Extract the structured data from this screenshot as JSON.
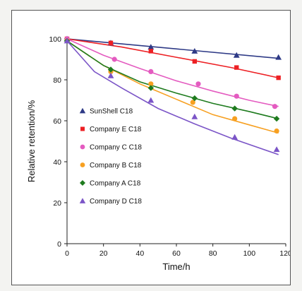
{
  "chart_data": {
    "type": "scatter",
    "xlabel": "Time/h",
    "ylabel": "Relative retention/%",
    "xlim": [
      0,
      120
    ],
    "ylim": [
      0,
      100
    ],
    "xticks": [
      0,
      20,
      40,
      60,
      80,
      100,
      120
    ],
    "yticks": [
      0,
      20,
      40,
      60,
      80,
      100
    ],
    "grid": false,
    "legend_position": "left",
    "series": [
      {
        "name": "SunShell C18",
        "marker": "triangle",
        "color": "#2e3a86",
        "x": [
          0,
          24,
          46,
          70,
          93,
          116
        ],
        "y": [
          100,
          98,
          96,
          94,
          92,
          91
        ],
        "fit": [
          [
            0,
            100
          ],
          [
            116,
            90.5
          ]
        ]
      },
      {
        "name": "Company E C18",
        "marker": "square",
        "color": "#ed2024",
        "x": [
          0,
          24,
          46,
          70,
          93,
          116
        ],
        "y": [
          100,
          98,
          94,
          89,
          86,
          81
        ],
        "fit": [
          [
            0,
            100
          ],
          [
            30,
            96
          ],
          [
            60,
            91
          ],
          [
            90,
            86
          ],
          [
            116,
            81
          ]
        ]
      },
      {
        "name": "Company C C18",
        "marker": "circle",
        "color": "#e45bc0",
        "x": [
          0,
          26,
          46,
          72,
          93,
          114
        ],
        "y": [
          100,
          90,
          84,
          78,
          72,
          67
        ],
        "fit": [
          [
            0,
            100
          ],
          [
            20,
            92
          ],
          [
            40,
            85.5
          ],
          [
            60,
            79.5
          ],
          [
            80,
            74.5
          ],
          [
            100,
            70
          ],
          [
            116,
            67
          ]
        ]
      },
      {
        "name": "Company B C18",
        "marker": "circle",
        "color": "#f7a021",
        "x": [
          0,
          24,
          46,
          69,
          92,
          115
        ],
        "y": [
          99,
          84,
          78,
          69,
          61,
          55
        ],
        "fit": [
          [
            0,
            99
          ],
          [
            20,
            87
          ],
          [
            40,
            78
          ],
          [
            60,
            70.5
          ],
          [
            80,
            63
          ],
          [
            100,
            58
          ],
          [
            116,
            54
          ]
        ]
      },
      {
        "name": "Company A C18",
        "marker": "diamond",
        "color": "#1e7b1e",
        "x": [
          0,
          24,
          46,
          70,
          92,
          115
        ],
        "y": [
          99,
          85,
          76,
          71,
          66,
          61
        ],
        "fit": [
          [
            0,
            99
          ],
          [
            20,
            87
          ],
          [
            40,
            79
          ],
          [
            60,
            73.5
          ],
          [
            80,
            68.5
          ],
          [
            100,
            64.5
          ],
          [
            116,
            61
          ]
        ]
      },
      {
        "name": "Company D C18",
        "marker": "triangle",
        "color": "#7b55c7",
        "x": [
          0,
          24,
          46,
          70,
          92,
          115
        ],
        "y": [
          99,
          82,
          70,
          62,
          52,
          46
        ],
        "fit": [
          [
            0,
            99
          ],
          [
            15,
            84
          ],
          [
            30,
            76
          ],
          [
            50,
            66
          ],
          [
            70,
            58.5
          ],
          [
            90,
            51.5
          ],
          [
            116,
            43.5
          ]
        ]
      }
    ]
  }
}
